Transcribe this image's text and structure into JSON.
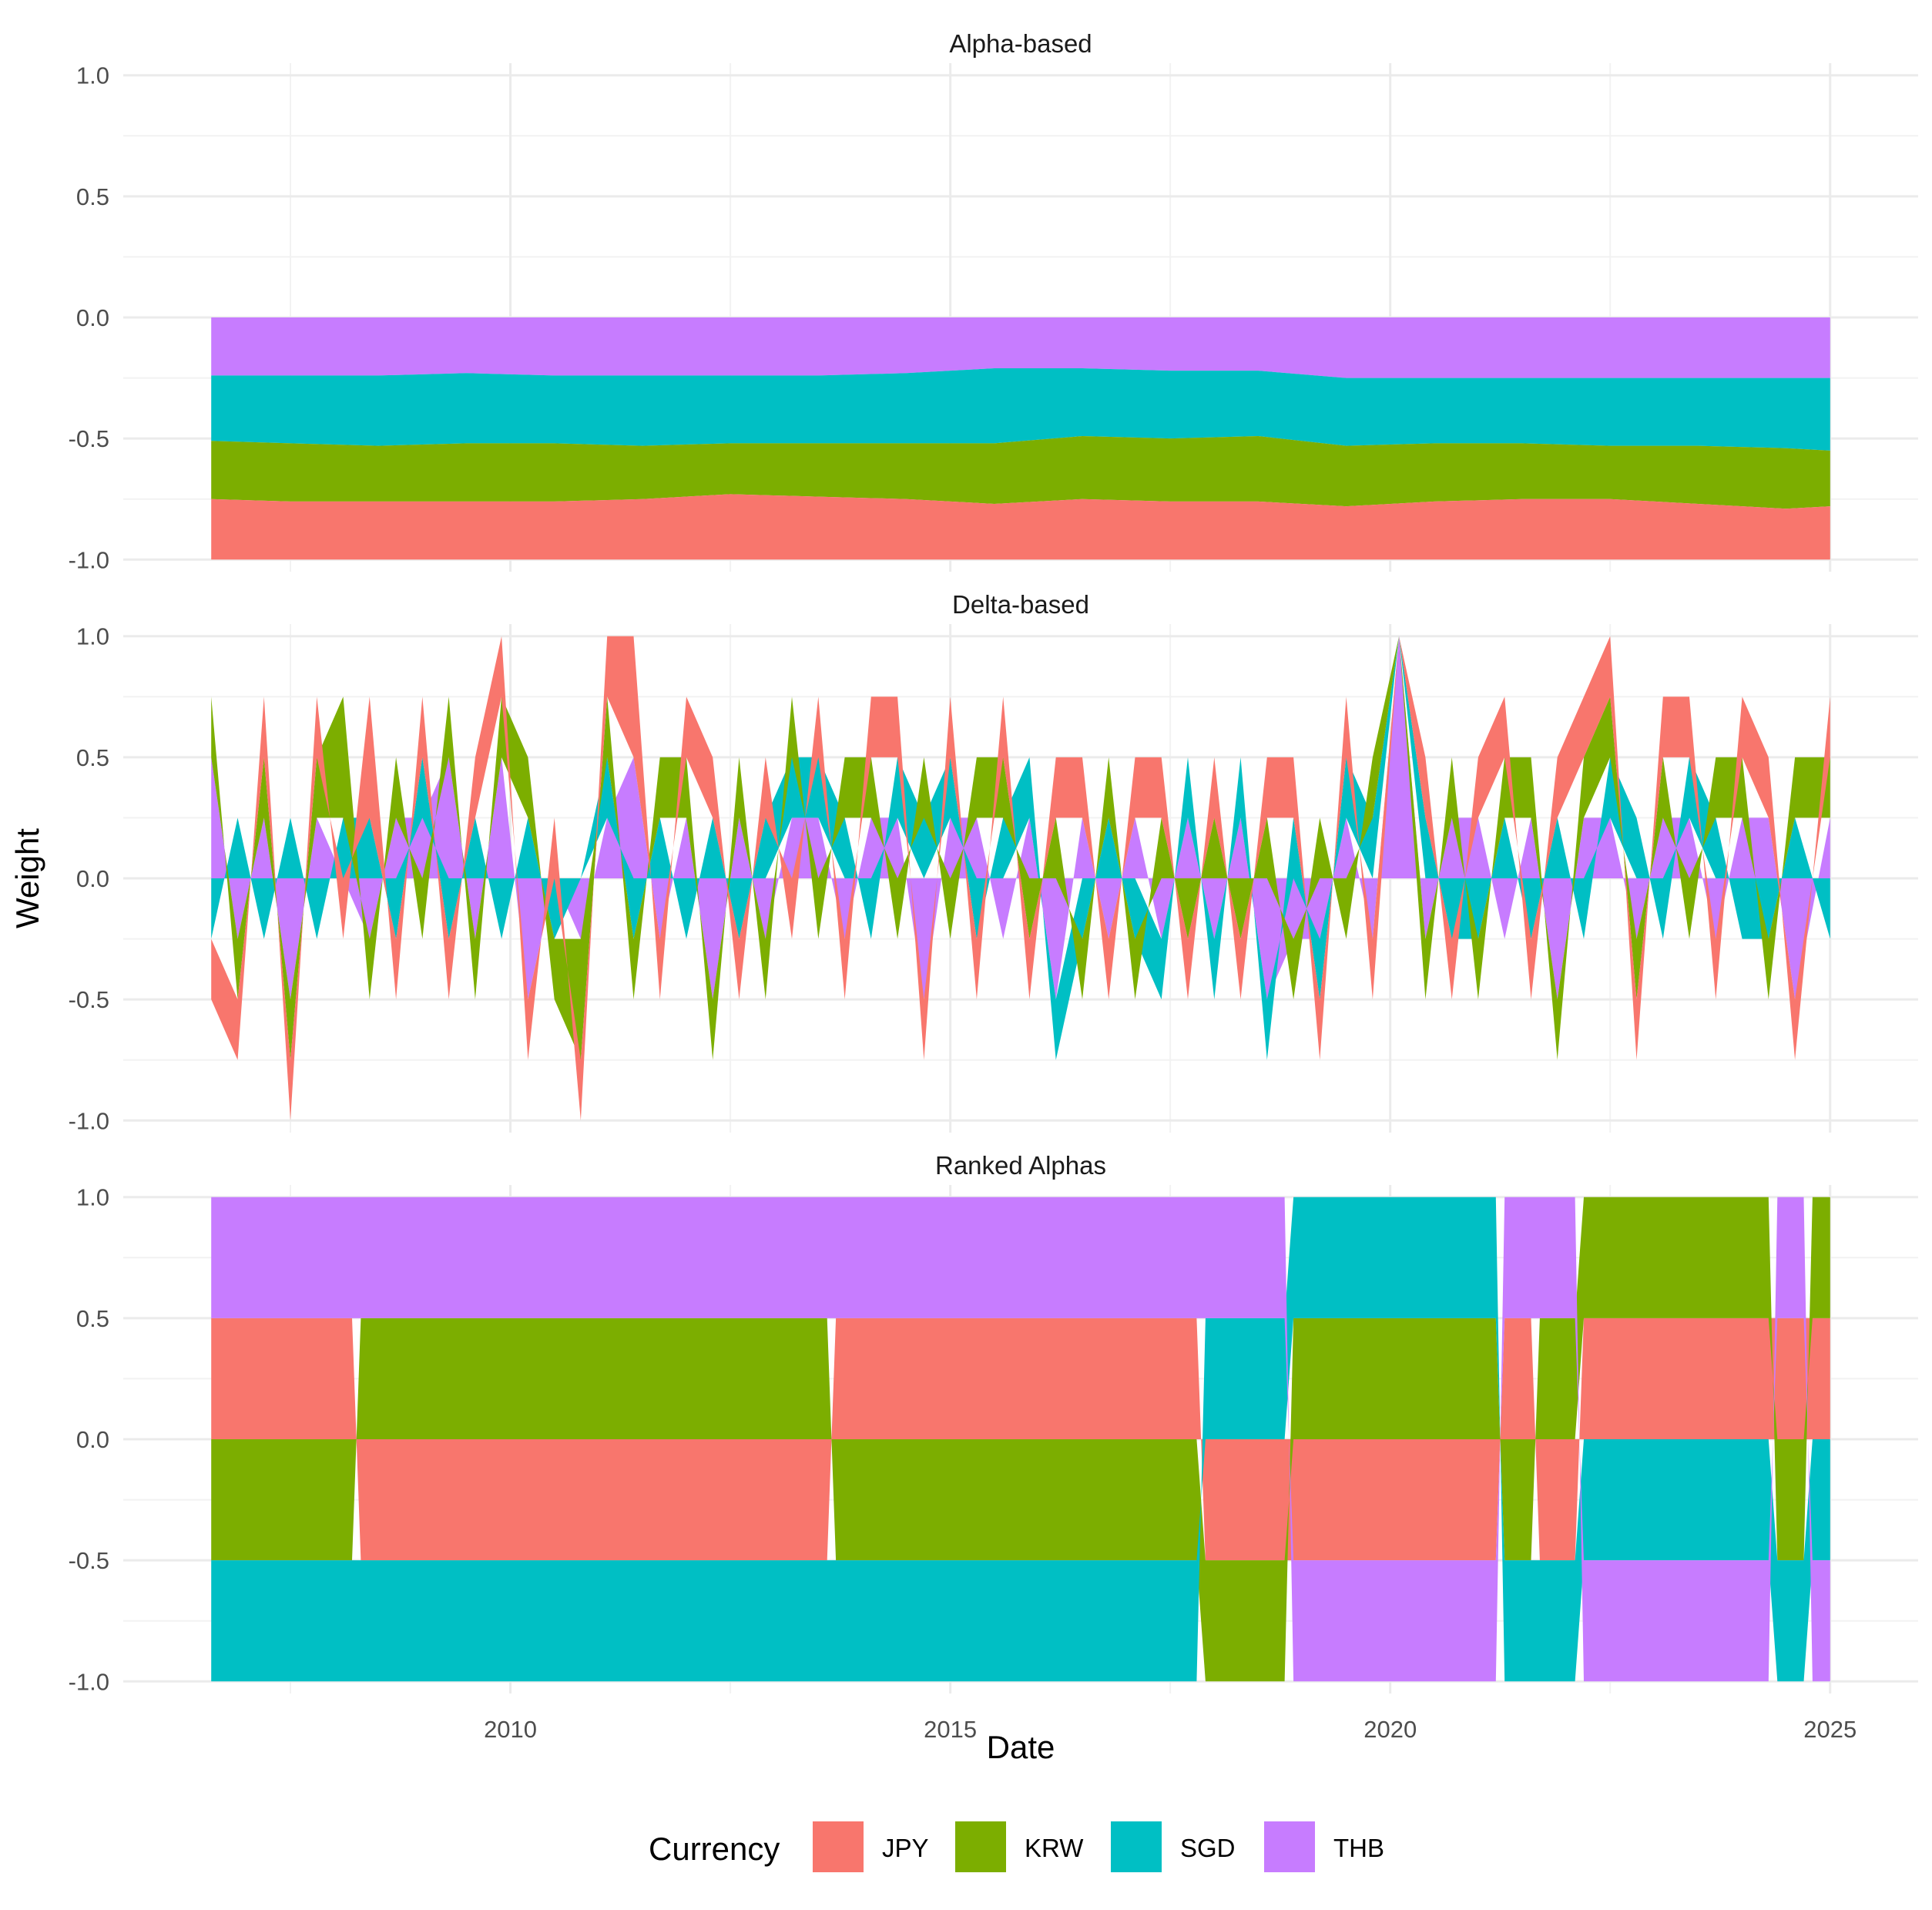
{
  "chart_data": {
    "type": "area",
    "stacked": true,
    "facet_grid": true,
    "grid": true,
    "legend_position": "bottom",
    "xlabel": "Date",
    "ylabel": "Weight",
    "x_ticks": [
      "2010",
      "2015",
      "2020",
      "2025"
    ],
    "x_tick_values": [
      2010,
      2015,
      2020,
      2025
    ],
    "xlim": [
      2005.6,
      2026.0
    ],
    "y_ticks": [
      "1.0",
      "0.5",
      "0.0",
      "-0.5",
      "-1.0"
    ],
    "y_tick_values": [
      1.0,
      0.5,
      0.0,
      -0.5,
      -1.0
    ],
    "ylim": [
      -1.05,
      1.05
    ],
    "legend": {
      "title": "Currency",
      "entries": [
        {
          "label": "JPY",
          "color": "#F8766D"
        },
        {
          "label": "KRW",
          "color": "#7CAE00"
        },
        {
          "label": "SGD",
          "color": "#00BFC4"
        },
        {
          "label": "THB",
          "color": "#C77CFF"
        }
      ]
    },
    "panels": [
      {
        "title": "Alpha-based",
        "x": [
          2006.6,
          2007.5,
          2008.5,
          2009.5,
          2010.5,
          2011.5,
          2012.5,
          2013.5,
          2014.5,
          2015.5,
          2016.5,
          2017.5,
          2018.5,
          2019.5,
          2020.5,
          2021.5,
          2022.5,
          2023.5,
          2024.5,
          2025.0
        ],
        "series": [
          {
            "name": "THB",
            "values": [
              -0.24,
              -0.24,
              -0.24,
              -0.23,
              -0.24,
              -0.24,
              -0.24,
              -0.24,
              -0.23,
              -0.21,
              -0.21,
              -0.22,
              -0.22,
              -0.25,
              -0.25,
              -0.25,
              -0.25,
              -0.25,
              -0.25,
              -0.25
            ]
          },
          {
            "name": "SGD",
            "values": [
              -0.27,
              -0.28,
              -0.29,
              -0.29,
              -0.28,
              -0.29,
              -0.28,
              -0.28,
              -0.29,
              -0.31,
              -0.28,
              -0.28,
              -0.27,
              -0.28,
              -0.27,
              -0.27,
              -0.28,
              -0.28,
              -0.29,
              -0.3
            ]
          },
          {
            "name": "KRW",
            "values": [
              -0.24,
              -0.24,
              -0.23,
              -0.24,
              -0.24,
              -0.22,
              -0.21,
              -0.22,
              -0.23,
              -0.25,
              -0.26,
              -0.26,
              -0.27,
              -0.25,
              -0.24,
              -0.23,
              -0.22,
              -0.24,
              -0.25,
              -0.23
            ]
          },
          {
            "name": "JPY",
            "values": [
              -0.25,
              -0.24,
              -0.24,
              -0.24,
              -0.24,
              -0.25,
              -0.27,
              -0.26,
              -0.25,
              -0.23,
              -0.25,
              -0.24,
              -0.24,
              -0.22,
              -0.24,
              -0.25,
              -0.25,
              -0.23,
              -0.21,
              -0.22
            ]
          }
        ]
      },
      {
        "title": "Delta-based",
        "x": [
          2006.6,
          2006.9,
          2007.2,
          2007.5,
          2007.8,
          2008.1,
          2008.4,
          2008.7,
          2009.0,
          2009.3,
          2009.6,
          2009.9,
          2010.2,
          2010.5,
          2010.8,
          2011.1,
          2011.4,
          2011.7,
          2012.0,
          2012.3,
          2012.6,
          2012.9,
          2013.2,
          2013.5,
          2013.8,
          2014.1,
          2014.4,
          2014.7,
          2015.0,
          2015.3,
          2015.6,
          2015.9,
          2016.2,
          2016.5,
          2016.8,
          2017.1,
          2017.4,
          2017.7,
          2018.0,
          2018.3,
          2018.6,
          2018.9,
          2019.2,
          2019.5,
          2019.8,
          2020.1,
          2020.4,
          2020.7,
          2021.0,
          2021.3,
          2021.6,
          2021.9,
          2022.2,
          2022.5,
          2022.8,
          2023.1,
          2023.4,
          2023.7,
          2024.0,
          2024.3,
          2024.6,
          2025.0
        ],
        "series": [
          {
            "name": "THB",
            "values": [
              0.5,
              -0.25,
              0.25,
              -0.5,
              0.25,
              0.0,
              -0.25,
              0.25,
              0.25,
              0.5,
              -0.25,
              0.5,
              -0.5,
              0.0,
              -0.25,
              0.25,
              0.5,
              -0.25,
              0.25,
              -0.5,
              0.25,
              -0.25,
              0.25,
              0.25,
              -0.25,
              0.25,
              0.25,
              -0.5,
              0.25,
              0.25,
              -0.25,
              0.25,
              -0.5,
              0.25,
              -0.25,
              0.25,
              -0.25,
              0.25,
              -0.25,
              0.25,
              -0.5,
              -0.25,
              -0.25,
              0.25,
              -0.25,
              1.0,
              -0.25,
              0.25,
              0.25,
              -0.25,
              0.25,
              -0.5,
              0.25,
              0.25,
              -0.25,
              0.25,
              0.25,
              -0.25,
              0.25,
              0.25,
              -0.5,
              0.25
            ]
          },
          {
            "name": "SGD",
            "values": [
              -0.25,
              0.25,
              -0.25,
              0.25,
              -0.25,
              0.25,
              0.25,
              -0.25,
              0.25,
              -0.25,
              0.25,
              -0.25,
              0.25,
              -0.25,
              0.0,
              0.25,
              -0.25,
              0.25,
              -0.25,
              0.25,
              -0.25,
              0.25,
              0.25,
              0.25,
              0.25,
              -0.25,
              0.25,
              0.25,
              0.25,
              -0.25,
              0.25,
              0.25,
              -0.25,
              -0.25,
              0.25,
              -0.25,
              -0.25,
              0.25,
              -0.25,
              0.25,
              -0.25,
              0.25,
              -0.25,
              0.25,
              0.25,
              0.0,
              0.25,
              -0.25,
              -0.25,
              0.25,
              -0.25,
              0.25,
              -0.25,
              0.25,
              0.25,
              -0.25,
              0.25,
              0.25,
              -0.25,
              -0.25,
              0.25,
              -0.25
            ]
          },
          {
            "name": "KRW",
            "values": [
              0.25,
              -0.25,
              0.25,
              -0.25,
              0.25,
              0.5,
              -0.25,
              0.25,
              -0.25,
              0.25,
              -0.25,
              0.25,
              0.25,
              -0.25,
              -0.5,
              0.25,
              -0.25,
              0.25,
              0.25,
              -0.25,
              0.25,
              -0.25,
              0.25,
              -0.25,
              0.25,
              0.25,
              -0.25,
              0.25,
              -0.25,
              0.25,
              0.25,
              -0.25,
              0.25,
              -0.25,
              0.25,
              -0.25,
              0.25,
              -0.25,
              0.25,
              -0.25,
              0.25,
              -0.25,
              0.25,
              -0.25,
              0.25,
              0.0,
              -0.25,
              0.25,
              -0.25,
              0.25,
              0.25,
              -0.25,
              0.25,
              0.25,
              -0.25,
              0.25,
              -0.25,
              0.25,
              0.25,
              -0.25,
              0.25,
              0.25
            ]
          },
          {
            "name": "JPY",
            "values": [
              -0.25,
              -0.25,
              0.25,
              -0.25,
              0.25,
              -0.25,
              0.5,
              -0.25,
              0.25,
              -0.25,
              0.25,
              0.25,
              -0.25,
              0.25,
              -0.25,
              0.25,
              0.5,
              -0.25,
              0.25,
              0.25,
              -0.25,
              0.25,
              -0.25,
              0.25,
              -0.25,
              0.25,
              0.25,
              -0.25,
              0.25,
              -0.25,
              0.25,
              -0.25,
              0.25,
              0.25,
              -0.25,
              0.25,
              0.25,
              -0.25,
              0.25,
              -0.25,
              0.25,
              0.25,
              -0.25,
              0.25,
              -0.25,
              0.0,
              0.25,
              -0.25,
              0.25,
              0.25,
              -0.25,
              0.25,
              0.25,
              0.25,
              -0.25,
              0.25,
              0.25,
              -0.25,
              0.25,
              0.25,
              -0.25,
              0.25
            ]
          }
        ]
      },
      {
        "title": "Ranked Alphas",
        "x": [
          2006.6,
          2008.2,
          2008.3,
          2013.6,
          2013.7,
          2017.8,
          2017.9,
          2018.8,
          2018.9,
          2021.2,
          2021.3,
          2021.6,
          2021.7,
          2022.1,
          2022.2,
          2024.3,
          2024.4,
          2024.7,
          2024.8,
          2025.0
        ],
        "series": [
          {
            "name": "JPY",
            "values": [
              0.5,
              0.5,
              -0.5,
              -0.5,
              0.5,
              0.5,
              -0.5,
              -0.5,
              -0.5,
              -0.5,
              0.5,
              0.5,
              -0.5,
              -0.5,
              0.5,
              0.5,
              0.5,
              0.5,
              0.5,
              0.5
            ]
          },
          {
            "name": "KRW",
            "values": [
              -0.5,
              -0.5,
              0.5,
              0.5,
              -0.5,
              -0.5,
              -0.5,
              -0.5,
              0.5,
              0.5,
              -0.5,
              -0.5,
              0.5,
              0.5,
              0.5,
              0.5,
              -0.5,
              -0.5,
              0.5,
              0.5
            ]
          },
          {
            "name": "SGD",
            "values": [
              -0.5,
              -0.5,
              -0.5,
              -0.5,
              -0.5,
              -0.5,
              0.5,
              0.5,
              0.5,
              0.5,
              -0.5,
              -0.5,
              -0.5,
              -0.5,
              -0.5,
              -0.5,
              -0.5,
              -0.5,
              -0.5,
              -0.5
            ]
          },
          {
            "name": "THB",
            "values": [
              0.5,
              0.5,
              0.5,
              0.5,
              0.5,
              0.5,
              0.5,
              0.5,
              -0.5,
              -0.5,
              0.5,
              0.5,
              0.5,
              0.5,
              -0.5,
              -0.5,
              0.5,
              0.5,
              -0.5,
              -0.5
            ]
          }
        ]
      }
    ]
  }
}
